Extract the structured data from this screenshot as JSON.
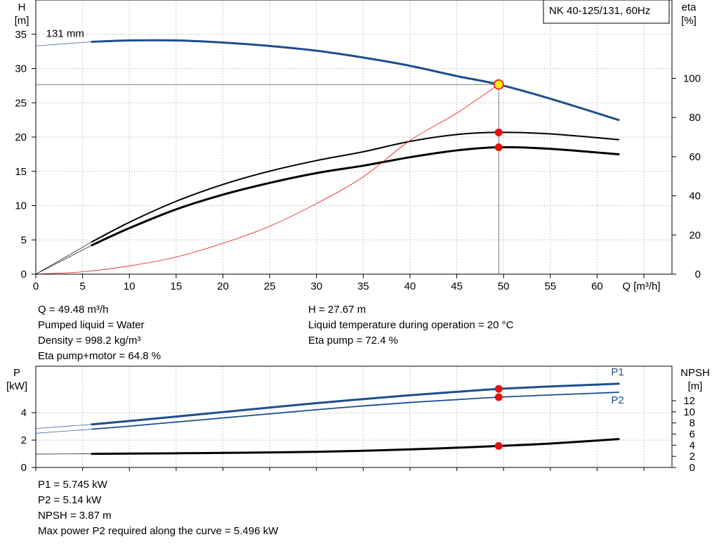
{
  "pump_label": "NK 40-125/131, 60Hz",
  "colors": {
    "blue": "#1f4e8c",
    "red": "#e8120c",
    "black": "#000000",
    "grid": "#c8c8c8",
    "marker_yellow": "#fff000"
  },
  "results_top": {
    "q": "Q = 49.48 m³/h",
    "liquid": "Pumped liquid = Water",
    "density": "Density = 998.2 kg/m³",
    "eta_pm": "Eta pump+motor = 64.8 %",
    "h": "H = 27.67 m",
    "temp": "Liquid temperature during operation = 20 °C",
    "eta_pump": "Eta pump = 72.4 %"
  },
  "results_bottom": {
    "p1": "P1 = 5.745 kW",
    "p2": "P2 = 5.14 kW",
    "npsh": "NPSH = 3.87 m",
    "max_p2": "Max power P2 required along the curve = 5.496 kW"
  },
  "chart_data": [
    {
      "type": "line",
      "name": "head-efficiency",
      "xlabel": "Q [m³/h]",
      "ylabel_left": [
        "H",
        "[m]"
      ],
      "ylabel_right": [
        "eta",
        "[%]"
      ],
      "xlim": [
        0,
        68
      ],
      "ylim_left": [
        0,
        40
      ],
      "ylim_right": [
        0,
        140
      ],
      "x_ticks": [
        0,
        5,
        10,
        15,
        20,
        25,
        30,
        35,
        40,
        45,
        50,
        55,
        60
      ],
      "y_left_ticks": [
        0,
        5,
        10,
        15,
        20,
        25,
        30,
        35
      ],
      "y_right_ticks": [
        0,
        20,
        40,
        60,
        80,
        100
      ],
      "grid": true,
      "series": [
        {
          "name": "131 mm",
          "axis": "left",
          "color": "#1f4e8c",
          "width": 3,
          "x": [
            6,
            10,
            15,
            20,
            25,
            30,
            35,
            40,
            45,
            49.48,
            55,
            62.3
          ],
          "y": [
            33.9,
            34.1,
            34.1,
            33.8,
            33.3,
            32.6,
            31.6,
            30.4,
            28.9,
            27.67,
            25.6,
            22.5
          ],
          "extension": {
            "x": [
              0,
              6
            ],
            "y": [
              33.3,
              33.9
            ]
          }
        },
        {
          "name": "Eta pump",
          "axis": "right",
          "color": "#000000",
          "width": 2,
          "x": [
            6,
            10,
            15,
            20,
            25,
            30,
            35,
            40,
            45,
            49.48,
            55,
            62.3
          ],
          "y": [
            16.5,
            26.5,
            37.2,
            45.8,
            52.6,
            58.0,
            62.5,
            67.8,
            71.3,
            72.4,
            71.6,
            68.7
          ],
          "extension": {
            "x": [
              0,
              6
            ],
            "y": [
              0,
              16.5
            ]
          }
        },
        {
          "name": "Eta pump+motor",
          "axis": "right",
          "color": "#000000",
          "width": 3,
          "x": [
            6,
            10,
            15,
            20,
            25,
            30,
            35,
            40,
            45,
            49.48,
            55,
            62.3
          ],
          "y": [
            14.8,
            23.5,
            33.1,
            40.6,
            46.6,
            51.6,
            55.4,
            59.7,
            63.2,
            64.8,
            64.0,
            61.2
          ],
          "extension": {
            "x": [
              0,
              6
            ],
            "y": [
              0,
              14.8
            ]
          }
        },
        {
          "name": "System curve",
          "axis": "left",
          "color": "#e8120c",
          "width": 0.8,
          "x": [
            0,
            5,
            10,
            15,
            20,
            25,
            30,
            35,
            40,
            45,
            49.48
          ],
          "y": [
            0,
            0.35,
            1.2,
            2.5,
            4.5,
            7.0,
            10.3,
            14.2,
            19.5,
            23.5,
            27.67
          ]
        }
      ],
      "duty_point": {
        "x": 49.48,
        "y": 27.67
      },
      "markers": [
        {
          "x": 49.48,
          "y": 72.4,
          "axis": "right"
        },
        {
          "x": 49.48,
          "y": 64.8,
          "axis": "right"
        }
      ],
      "annotations": [
        {
          "text": "131 mm",
          "anchor": "curve-start"
        }
      ]
    },
    {
      "type": "line",
      "name": "power-npsh",
      "ylabel_left": [
        "P",
        "[kW]"
      ],
      "ylabel_right": [
        "NPSH",
        "[m]"
      ],
      "xlim": [
        0,
        68
      ],
      "ylim_left": [
        0,
        7.4
      ],
      "ylim_right": [
        0,
        18.2
      ],
      "y_left_ticks": [
        0,
        2,
        4
      ],
      "y_right_ticks": [
        0,
        2,
        4,
        6,
        8,
        10,
        12
      ],
      "grid": true,
      "series": [
        {
          "name": "P1",
          "axis": "left",
          "color": "#1f4e8c",
          "width": 3,
          "x": [
            6,
            10,
            15,
            20,
            25,
            30,
            35,
            40,
            45,
            49.48,
            55,
            62.3
          ],
          "y": [
            3.15,
            3.4,
            3.72,
            4.05,
            4.38,
            4.7,
            5.0,
            5.28,
            5.53,
            5.745,
            5.92,
            6.12
          ],
          "extension": {
            "x": [
              0,
              6
            ],
            "y": [
              2.85,
              3.15
            ]
          }
        },
        {
          "name": "P2",
          "axis": "left",
          "color": "#1f4e8c",
          "width": 1.8,
          "x": [
            6,
            10,
            15,
            20,
            25,
            30,
            35,
            40,
            45,
            49.48,
            55,
            62.3
          ],
          "y": [
            2.8,
            3.02,
            3.32,
            3.62,
            3.92,
            4.22,
            4.5,
            4.75,
            4.96,
            5.14,
            5.3,
            5.496
          ],
          "extension": {
            "x": [
              0,
              6
            ],
            "y": [
              2.5,
              2.8
            ]
          }
        },
        {
          "name": "NPSH",
          "axis": "right",
          "color": "#000000",
          "width": 3,
          "x": [
            6,
            10,
            15,
            20,
            25,
            30,
            35,
            40,
            45,
            49.48,
            55,
            62.3
          ],
          "y": [
            2.45,
            2.5,
            2.55,
            2.62,
            2.7,
            2.82,
            3.0,
            3.25,
            3.55,
            3.87,
            4.3,
            5.1
          ],
          "extension": {
            "x": [
              0,
              6
            ],
            "y": [
              2.4,
              2.45
            ]
          }
        }
      ],
      "markers": [
        {
          "x": 49.48,
          "y": 5.745,
          "axis": "left"
        },
        {
          "x": 49.48,
          "y": 5.14,
          "axis": "left"
        },
        {
          "x": 49.48,
          "y": 3.87,
          "axis": "right"
        }
      ],
      "legend": [
        {
          "text": "P1",
          "series": "P1"
        },
        {
          "text": "P2",
          "series": "P2"
        }
      ]
    }
  ]
}
